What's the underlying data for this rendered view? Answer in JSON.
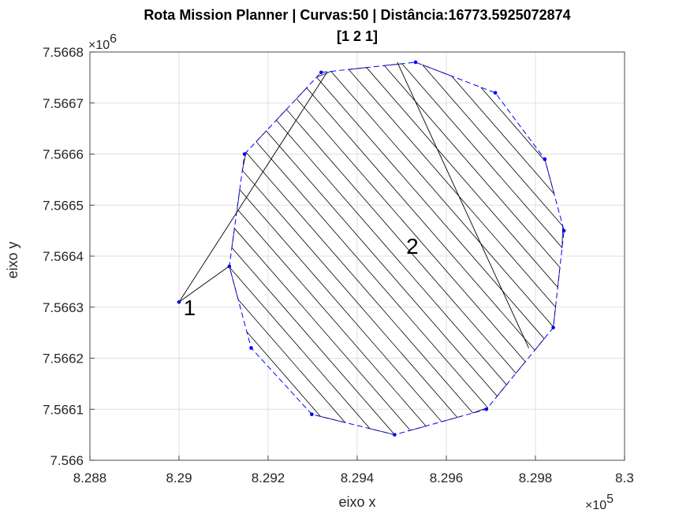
{
  "chart_data": {
    "type": "line",
    "title_line1": "Rota Mission Planner | Curvas:50 | Distância:16773.5925072874",
    "title_line2": "[1 2 1]",
    "xlabel": "eixo x",
    "ylabel": "eixo y",
    "x_exponent_base": "×10",
    "x_exponent_power": "5",
    "y_exponent_base": "×10",
    "y_exponent_power": "6",
    "xlim": [
      8.288,
      8.3
    ],
    "ylim": [
      7.566,
      7.5668
    ],
    "x_ticks": [
      "8.288",
      "8.29",
      "8.292",
      "8.294",
      "8.296",
      "8.298",
      "8.3"
    ],
    "y_ticks": [
      "7.566",
      "7.5661",
      "7.5662",
      "7.5663",
      "7.5664",
      "7.5665",
      "7.5666",
      "7.5667",
      "7.5668"
    ],
    "grid": true,
    "boundary_color": "#0000ff",
    "path_color": "#000000",
    "boundary": [
      [
        8.29147,
        7.5666
      ],
      [
        8.29319,
        7.56676
      ],
      [
        8.29531,
        7.56678
      ],
      [
        8.2971,
        7.56672
      ],
      [
        8.29821,
        7.56659
      ],
      [
        8.29864,
        7.56645
      ],
      [
        8.2984,
        7.56626
      ],
      [
        8.2969,
        7.5661
      ],
      [
        8.29484,
        7.56605
      ],
      [
        8.29298,
        7.56609
      ],
      [
        8.29162,
        7.56622
      ],
      [
        8.29113,
        7.56638
      ]
    ],
    "annotations": [
      {
        "text": "1",
        "x": 8.2901,
        "y": 7.5663
      },
      {
        "text": "2",
        "x": 8.2951,
        "y": 7.56642
      }
    ],
    "home_point": [
      8.29,
      7.56631
    ],
    "entry_point": [
      8.29332,
      7.56676
    ],
    "exit_point": [
      8.29112,
      7.56638
    ],
    "diagonal_line": [
      [
        8.2949,
        7.56678
      ],
      [
        8.29785,
        7.56622
      ]
    ],
    "sweep_lines": 24
  }
}
